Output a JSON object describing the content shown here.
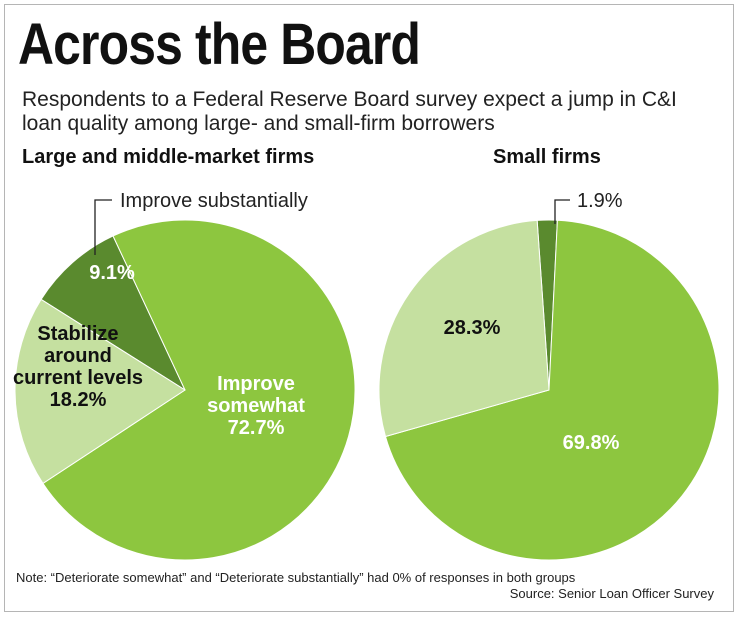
{
  "title": "Across the Board",
  "subtitle": "Respondents to a Federal Reserve Board survey expect a jump in C&I loan quality among large- and small-firm borrowers",
  "note": "Note: “Deteriorate somewhat” and “Deteriorate substantially” had 0% of responses in both groups",
  "source": "Source: Senior Loan Officer Survey",
  "colors": {
    "improve_substantially": "#5a8a2e",
    "improve_somewhat": "#8dc63f",
    "stabilize": "#c5e0a0",
    "outline": "#ffffff"
  },
  "chart_data": [
    {
      "type": "pie",
      "title": "Large and middle-market firms",
      "slices": [
        {
          "key": "improve_substantially",
          "name": "Improve substantially",
          "value": 9.1,
          "label_lines": [
            "9.1%"
          ],
          "callout": "Improve substantially"
        },
        {
          "key": "improve_somewhat",
          "name": "Improve somewhat",
          "value": 72.7,
          "label_lines": [
            "Improve",
            "somewhat",
            "72.7%"
          ]
        },
        {
          "key": "stabilize",
          "name": "Stabilize around current levels",
          "value": 18.2,
          "label_lines": [
            "Stabilize",
            "around",
            "current levels",
            "18.2%"
          ]
        }
      ]
    },
    {
      "type": "pie",
      "title": "Small firms",
      "slices": [
        {
          "key": "improve_substantially",
          "name": "Improve substantially",
          "value": 1.9,
          "label_lines": [],
          "callout": "1.9%"
        },
        {
          "key": "improve_somewhat",
          "name": "Improve somewhat",
          "value": 69.8,
          "label_lines": [
            "69.8%"
          ]
        },
        {
          "key": "stabilize",
          "name": "Stabilize around current levels",
          "value": 28.3,
          "label_lines": [
            "28.3%"
          ]
        }
      ]
    }
  ]
}
